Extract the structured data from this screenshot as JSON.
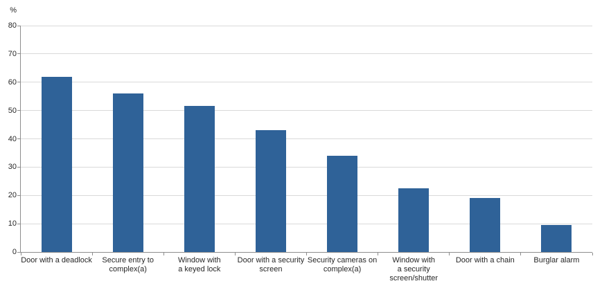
{
  "chart": {
    "y_unit_label": "%"
  },
  "chart_data": {
    "type": "bar",
    "title": "",
    "xlabel": "",
    "ylabel": "%",
    "y_unit_label": "%",
    "categories": [
      "Door with a deadlock",
      "Secure entry to\ncomplex(a)",
      "Window with\na keyed lock",
      "Door with a security\nscreen",
      "Security cameras on\ncomplex(a)",
      "Window with\na security\nscreen/shutter",
      "Door with a chain",
      "Burglar alarm"
    ],
    "values": [
      62,
      56,
      51.5,
      43,
      34,
      22.5,
      19,
      9.5
    ],
    "ylim": [
      0,
      80
    ],
    "ytick_step": 10,
    "ytick_labels": [
      "0",
      "10",
      "20",
      "30",
      "40",
      "50",
      "60",
      "70",
      "80"
    ],
    "grid": true,
    "legend": "none",
    "bar_color": "#2F6298",
    "gridline_color": "#D9D9D9",
    "axis_color": "#8C8C8C",
    "text_color": "#262626"
  }
}
